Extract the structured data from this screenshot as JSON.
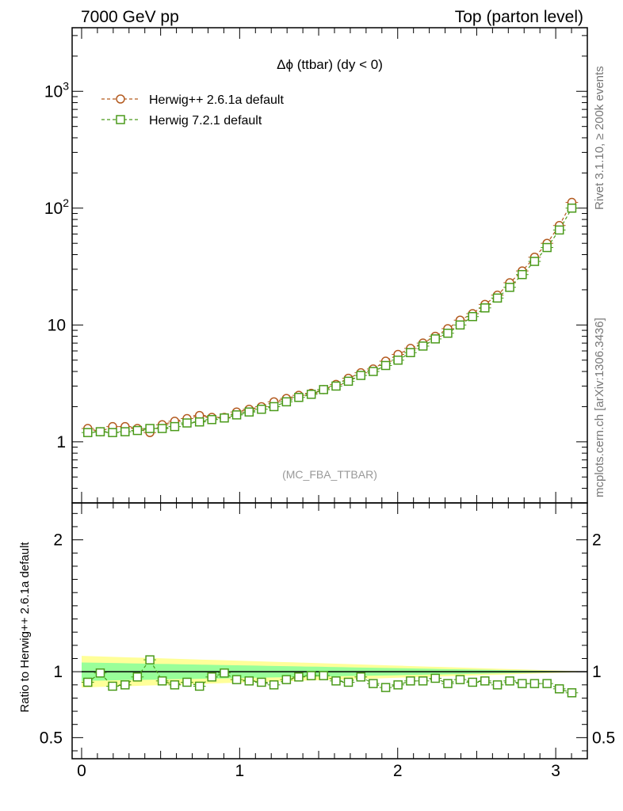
{
  "header": {
    "left": "7000 GeV pp",
    "right": "Top (parton level)"
  },
  "side_text": {
    "rivet": "Rivet 3.1.10, ≥ 200k events",
    "mcplots": "mcplots.cern.ch [arXiv:1306.3436]"
  },
  "chart_data": [
    {
      "type": "line",
      "panel": "main",
      "title": "Δϕ (ttbar) (dy < 0)",
      "watermark": "(MC_FBA_TTBAR)",
      "xlim": [
        -0.06,
        3.2
      ],
      "ylim": [
        0.3,
        3500
      ],
      "yscale": "log",
      "ytick_labels": [
        "1",
        "10",
        "10^2",
        "10^3"
      ],
      "xlabel": "",
      "ylabel": "",
      "legend_placement": "top-left",
      "grid": false,
      "x": [
        0.039,
        0.118,
        0.196,
        0.275,
        0.353,
        0.432,
        0.51,
        0.589,
        0.667,
        0.746,
        0.824,
        0.903,
        0.981,
        1.06,
        1.138,
        1.217,
        1.296,
        1.374,
        1.453,
        1.531,
        1.61,
        1.688,
        1.767,
        1.845,
        1.924,
        2.002,
        2.081,
        2.16,
        2.238,
        2.317,
        2.395,
        2.474,
        2.552,
        2.631,
        2.709,
        2.788,
        2.866,
        2.945,
        3.023,
        3.102
      ],
      "series": [
        {
          "name": "Herwig++ 2.6.1a default",
          "color": "#b35a1f",
          "marker": "circle",
          "values": [
            1.3,
            1.22,
            1.35,
            1.35,
            1.3,
            1.2,
            1.4,
            1.5,
            1.58,
            1.68,
            1.62,
            1.62,
            1.8,
            1.9,
            2.0,
            2.2,
            2.35,
            2.5,
            2.6,
            2.8,
            3.1,
            3.5,
            3.9,
            4.2,
            4.9,
            5.6,
            6.3,
            7.0,
            8.0,
            9.3,
            11.0,
            12.5,
            15.0,
            18.0,
            23.0,
            29.0,
            38.0,
            50.0,
            71.0,
            112.0
          ]
        },
        {
          "name": "Herwig 7.2.1 default",
          "color": "#4a9a1a",
          "marker": "square",
          "values": [
            1.2,
            1.22,
            1.2,
            1.22,
            1.25,
            1.3,
            1.3,
            1.35,
            1.45,
            1.48,
            1.55,
            1.6,
            1.7,
            1.8,
            1.9,
            2.0,
            2.2,
            2.4,
            2.55,
            2.8,
            3.0,
            3.3,
            3.7,
            4.0,
            4.5,
            5.0,
            5.8,
            6.6,
            7.6,
            8.5,
            10.0,
            11.8,
            14.0,
            17.0,
            21.0,
            27.0,
            35.0,
            46.0,
            65.0,
            100.0
          ]
        }
      ]
    },
    {
      "type": "line",
      "panel": "ratio",
      "xlim": [
        -0.06,
        3.2
      ],
      "ylim": [
        0.34,
        2.28
      ],
      "xtick_labels": [
        "0",
        "1",
        "2",
        "3"
      ],
      "ytick_labels": [
        "0.5",
        "1",
        "2"
      ],
      "xlabel": "",
      "ylabel": "Ratio to Herwig++ 2.6.1a default",
      "reference_value": 1.0,
      "band_colors": {
        "outer": "#ffff99",
        "inner": "#99ff99"
      },
      "band_outer_halfwidth": [
        0.12,
        0.004
      ],
      "band_inner_halfwidth": [
        0.07,
        0.002
      ],
      "x": [
        0.039,
        0.118,
        0.196,
        0.275,
        0.353,
        0.432,
        0.51,
        0.589,
        0.667,
        0.746,
        0.824,
        0.903,
        0.981,
        1.06,
        1.138,
        1.217,
        1.296,
        1.374,
        1.453,
        1.531,
        1.61,
        1.688,
        1.767,
        1.845,
        1.924,
        2.002,
        2.081,
        2.16,
        2.238,
        2.317,
        2.395,
        2.474,
        2.552,
        2.631,
        2.709,
        2.788,
        2.866,
        2.945,
        3.023,
        3.102
      ],
      "series": [
        {
          "name": "Herwig 7.2.1 default",
          "color": "#4a9a1a",
          "marker": "square",
          "values": [
            0.92,
            0.99,
            0.89,
            0.9,
            0.96,
            1.09,
            0.93,
            0.9,
            0.92,
            0.89,
            0.96,
            0.99,
            0.94,
            0.93,
            0.92,
            0.9,
            0.94,
            0.96,
            0.97,
            0.97,
            0.93,
            0.92,
            0.96,
            0.91,
            0.88,
            0.9,
            0.93,
            0.93,
            0.95,
            0.91,
            0.94,
            0.92,
            0.93,
            0.9,
            0.93,
            0.91,
            0.91,
            0.91,
            0.87,
            0.84
          ]
        }
      ]
    }
  ]
}
